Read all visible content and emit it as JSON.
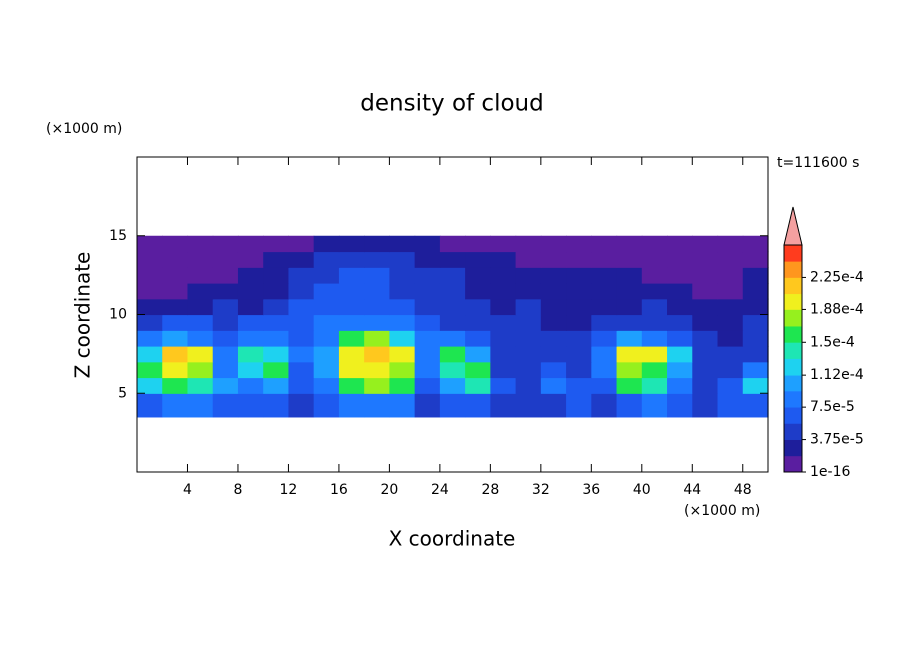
{
  "chart_data": {
    "type": "contour",
    "title": "density of cloud",
    "x_label": "X coordinate",
    "y_label": "Z coordinate",
    "x_unit": "(×1000 m)",
    "y_unit": "(×1000 m)",
    "annotation": "t=111600 s",
    "xlim": [
      0,
      50
    ],
    "ylim": [
      0,
      20
    ],
    "xticks": [
      4,
      8,
      12,
      16,
      20,
      24,
      28,
      32,
      36,
      40,
      44,
      48
    ],
    "yticks": [
      5,
      10,
      15
    ],
    "x_edges": [
      0,
      2,
      4,
      6,
      8,
      10,
      12,
      14,
      16,
      18,
      20,
      22,
      24,
      26,
      28,
      30,
      32,
      34,
      36,
      38,
      40,
      42,
      44,
      46,
      48,
      50
    ],
    "z_edges": [
      3.5,
      5,
      6,
      7,
      8,
      9,
      10,
      11,
      12,
      13,
      14,
      15
    ],
    "values": [
      [
        6e-05,
        8e-05,
        8e-05,
        6e-05,
        7e-05,
        6e-05,
        5e-05,
        6e-05,
        9e-05,
        9e-05,
        8e-05,
        5e-05,
        6e-05,
        7e-05,
        5e-05,
        4e-05,
        5e-05,
        6e-05,
        4e-05,
        7e-05,
        8e-05,
        6e-05,
        5e-05,
        6e-05,
        7e-05
      ],
      [
        0.00012,
        0.00015,
        0.00014,
        0.0001,
        8e-05,
        0.00011,
        6e-05,
        8e-05,
        0.00016,
        0.00017,
        0.00015,
        7e-05,
        0.00011,
        0.00014,
        6e-05,
        5e-05,
        9e-05,
        7e-05,
        6e-05,
        0.00015,
        0.00014,
        9e-05,
        5e-05,
        6e-05,
        0.00012
      ],
      [
        0.00015,
        0.0002,
        0.00018,
        9e-05,
        0.00012,
        0.00015,
        7e-05,
        0.0001,
        0.00019,
        0.0002,
        0.00018,
        8e-05,
        0.00014,
        0.00015,
        5e-05,
        4e-05,
        7e-05,
        5e-05,
        8e-05,
        0.00017,
        0.00016,
        0.00011,
        5e-05,
        4e-05,
        8e-05
      ],
      [
        0.00013,
        0.00021,
        0.00019,
        8e-05,
        0.00014,
        0.00013,
        8e-05,
        0.00011,
        0.0002,
        0.00022,
        0.00019,
        9e-05,
        0.00016,
        0.0001,
        5e-05,
        4e-05,
        5e-05,
        4e-05,
        9e-05,
        0.0002,
        0.00019,
        0.00012,
        4e-05,
        4e-05,
        5e-05
      ],
      [
        8e-05,
        0.00011,
        9e-05,
        6e-05,
        9e-05,
        8e-05,
        7e-05,
        9e-05,
        0.00015,
        0.00017,
        0.00013,
        8e-05,
        9e-05,
        6e-05,
        5e-05,
        4e-05,
        4e-05,
        4e-05,
        6e-05,
        0.0001,
        9e-05,
        6e-05,
        4e-05,
        3e-05,
        4e-05
      ],
      [
        5e-05,
        6e-05,
        6e-05,
        5e-05,
        6e-05,
        6e-05,
        6e-05,
        8e-05,
        9e-05,
        9e-05,
        8e-05,
        6e-05,
        5e-05,
        5e-05,
        4e-05,
        4e-05,
        3e-05,
        3e-05,
        4e-05,
        5e-05,
        4e-05,
        4e-05,
        3e-05,
        3e-05,
        4e-05
      ],
      [
        2e-05,
        3e-05,
        3e-05,
        4e-05,
        3e-05,
        4e-05,
        6e-05,
        7e-05,
        6e-05,
        6e-05,
        6e-05,
        5e-05,
        4e-05,
        4e-05,
        3e-05,
        4e-05,
        3e-05,
        2e-05,
        3e-05,
        3e-05,
        4e-05,
        3e-05,
        2e-05,
        2e-05,
        3e-05
      ],
      [
        1e-05,
        1.5e-05,
        2e-05,
        2e-05,
        2e-05,
        3e-05,
        5e-05,
        6e-05,
        6e-05,
        6e-05,
        5e-05,
        5e-05,
        4e-05,
        3e-05,
        3e-05,
        3e-05,
        2e-05,
        2e-05,
        2e-05,
        2e-05,
        2e-05,
        2e-05,
        1.5e-05,
        1.5e-05,
        2e-05
      ],
      [
        1e-05,
        1e-05,
        1.5e-05,
        1.5e-05,
        2e-05,
        3e-05,
        4e-05,
        5e-05,
        6e-05,
        6e-05,
        5e-05,
        4e-05,
        4e-05,
        3e-05,
        2.5e-05,
        2e-05,
        2e-05,
        2e-05,
        2e-05,
        2e-05,
        1.5e-05,
        1e-05,
        1e-05,
        1e-05,
        2e-05
      ],
      [
        1e-05,
        1e-05,
        1e-05,
        1e-05,
        1.5e-05,
        2e-05,
        3e-05,
        4e-05,
        4e-05,
        4e-05,
        4e-05,
        3e-05,
        2.5e-05,
        2e-05,
        2e-05,
        1.5e-05,
        1.5e-05,
        1.5e-05,
        1e-05,
        1e-05,
        1e-05,
        1e-05,
        1e-05,
        1e-05,
        1e-05
      ],
      [
        1e-05,
        1e-05,
        1e-05,
        1e-05,
        1e-05,
        1e-05,
        1.5e-05,
        2e-05,
        2e-05,
        2e-05,
        2e-05,
        2e-05,
        1.5e-05,
        1e-05,
        1e-05,
        1e-05,
        1e-05,
        1e-05,
        1e-05,
        1e-05,
        1e-05,
        1e-05,
        1e-05,
        1e-05,
        1e-05
      ]
    ],
    "levels": [
      1e-16,
      1.875e-05,
      3.75e-05,
      5.625e-05,
      7.5e-05,
      9.375e-05,
      0.000112,
      0.00013125,
      0.00015,
      0.00016875,
      0.000188,
      0.00020625,
      0.000225,
      0.00024375,
      0.0002625
    ],
    "colors": [
      "#5a1ea0",
      "#1e1e9b",
      "#1e3cc8",
      "#1e5af0",
      "#1e78ff",
      "#1ea0ff",
      "#1ed2f0",
      "#1ee6b4",
      "#1ee650",
      "#96f01e",
      "#f0f01e",
      "#ffc81e",
      "#ff961e",
      "#ff3c1e"
    ],
    "extend_color": "#f4a0a0",
    "colorbar_ticks": [
      {
        "value": 1e-16,
        "label": "1e-16"
      },
      {
        "value": 3.75e-05,
        "label": "3.75e-5"
      },
      {
        "value": 7.5e-05,
        "label": "7.5e-5"
      },
      {
        "value": 0.000112,
        "label": "1.12e-4"
      },
      {
        "value": 0.00015,
        "label": "1.5e-4"
      },
      {
        "value": 0.000188,
        "label": "1.88e-4"
      },
      {
        "value": 0.000225,
        "label": "2.25e-4"
      }
    ]
  }
}
